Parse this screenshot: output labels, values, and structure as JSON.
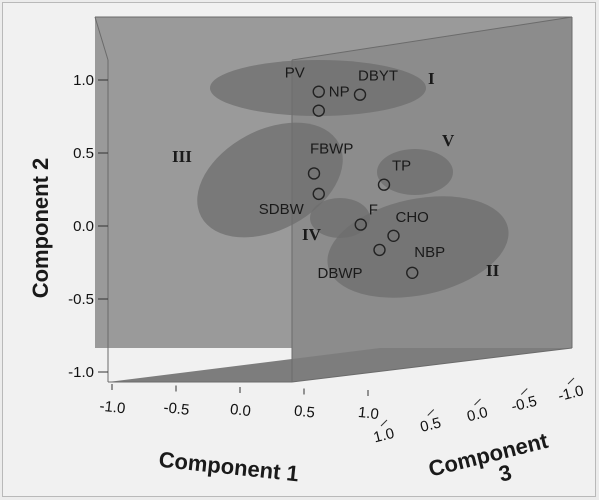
{
  "chart_data": {
    "type": "scatter",
    "subtype": "3d-scatter",
    "axes": {
      "x": {
        "label": "Component 1",
        "ticks": [
          "-1.0",
          "-0.5",
          "0.0",
          "0.5",
          "1.0"
        ],
        "range": [
          -1.0,
          1.0
        ]
      },
      "y": {
        "label": "Component 2",
        "ticks": [
          "-1.0",
          "-0.5",
          "0.0",
          "0.5",
          "1.0"
        ],
        "range": [
          -1.0,
          1.0
        ]
      },
      "z": {
        "label": "Component 3",
        "ticks": [
          "1.0",
          "0.5",
          "0.0",
          "-0.5",
          "-1.0"
        ],
        "range": [
          -1.0,
          1.0
        ]
      }
    },
    "points": [
      {
        "label": "PV",
        "x": 0.25,
        "y": 0.92,
        "z": 0.0
      },
      {
        "label": "NP",
        "x": 0.25,
        "y": 0.79,
        "z": 0.0
      },
      {
        "label": "DBYT",
        "x": 0.4,
        "y": 0.92,
        "z": 0.6
      },
      {
        "label": "FBWP",
        "x": 0.2,
        "y": 0.36,
        "z": 0.0
      },
      {
        "label": "SDBW",
        "x": 0.25,
        "y": 0.22,
        "z": 0.0
      },
      {
        "label": "TP",
        "x": 0.7,
        "y": 0.3,
        "z": 0.5
      },
      {
        "label": "F",
        "x": 0.55,
        "y": 0.02,
        "z": 0.3
      },
      {
        "label": "CHO",
        "x": 0.8,
        "y": -0.05,
        "z": 0.5
      },
      {
        "label": "DBWP",
        "x": 0.7,
        "y": -0.15,
        "z": 0.4
      },
      {
        "label": "NBP",
        "x": 0.95,
        "y": -0.3,
        "z": 0.6
      }
    ],
    "groups": [
      {
        "label": "I",
        "members": [
          "PV",
          "NP",
          "DBYT"
        ]
      },
      {
        "label": "II",
        "members": [
          "CHO",
          "DBWP",
          "NBP"
        ]
      },
      {
        "label": "III",
        "members": [
          "FBWP",
          "SDBW"
        ]
      },
      {
        "label": "IV",
        "members": [
          "F"
        ]
      },
      {
        "label": "V",
        "members": [
          "TP"
        ]
      }
    ],
    "grid": false,
    "legend": "none"
  }
}
